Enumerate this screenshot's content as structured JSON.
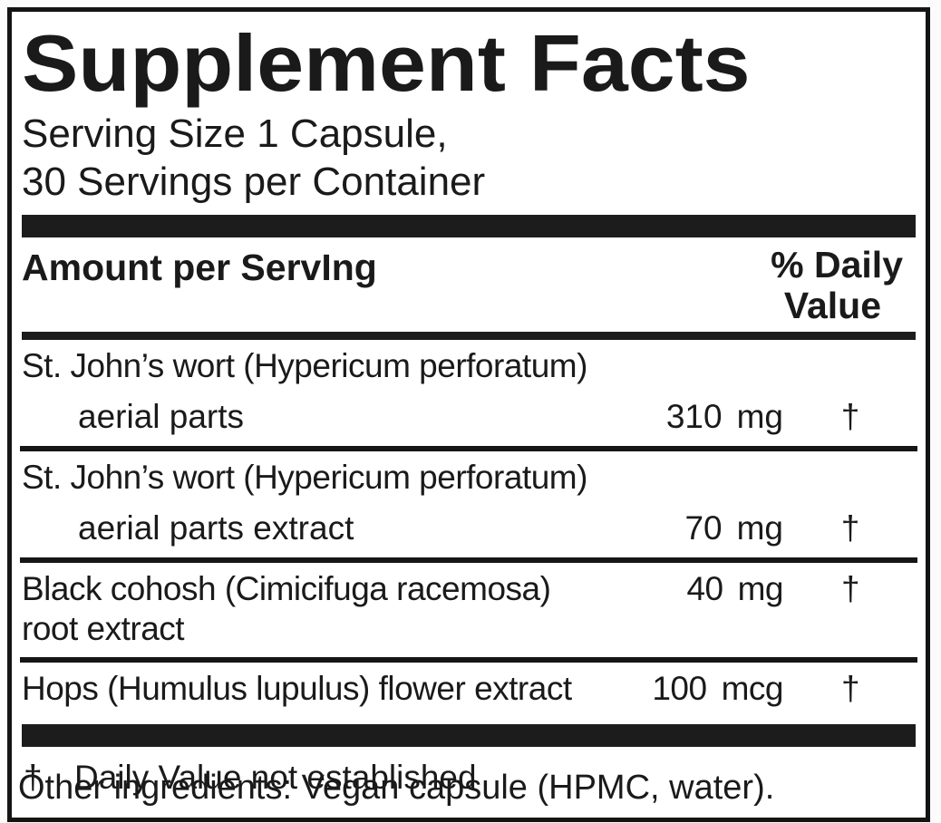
{
  "label": {
    "title": "Supplement Facts",
    "serving_size": "Serving Size 1 Capsule,",
    "servings_per_container": "30 Servings per Container",
    "columns": {
      "amount_header": "Amount per ServIng",
      "dv_header_line1": "% Daily",
      "dv_header_line2": "Value"
    },
    "rows": [
      {
        "name_line1": "St. John’s wort (Hypericum perforatum)",
        "name_line2": "aerial parts",
        "amount": "310",
        "unit": "mg",
        "daily_value": "†"
      },
      {
        "name_line1": "St. John’s wort (Hypericum perforatum)",
        "name_line2": "aerial parts extract",
        "amount": "70",
        "unit": "mg",
        "daily_value": "†"
      },
      {
        "name": "Black cohosh (Cimicifuga racemosa) root extract",
        "amount": "40",
        "unit": "mg",
        "daily_value": "†"
      },
      {
        "name": "Hops (Humulus lupulus) flower extract",
        "amount": "100",
        "unit": "mcg",
        "daily_value": "†"
      }
    ],
    "footnote": {
      "symbol": "†",
      "text": "Daily Value not established"
    },
    "other_ingredients": "Other ingredients: Vegan capsule (HPMC, water).",
    "colors": {
      "ink": "#1a1a1a",
      "panel_background": "#ffffff",
      "page_background": "#fbfbfb",
      "bar": "#1c1c1c"
    }
  }
}
